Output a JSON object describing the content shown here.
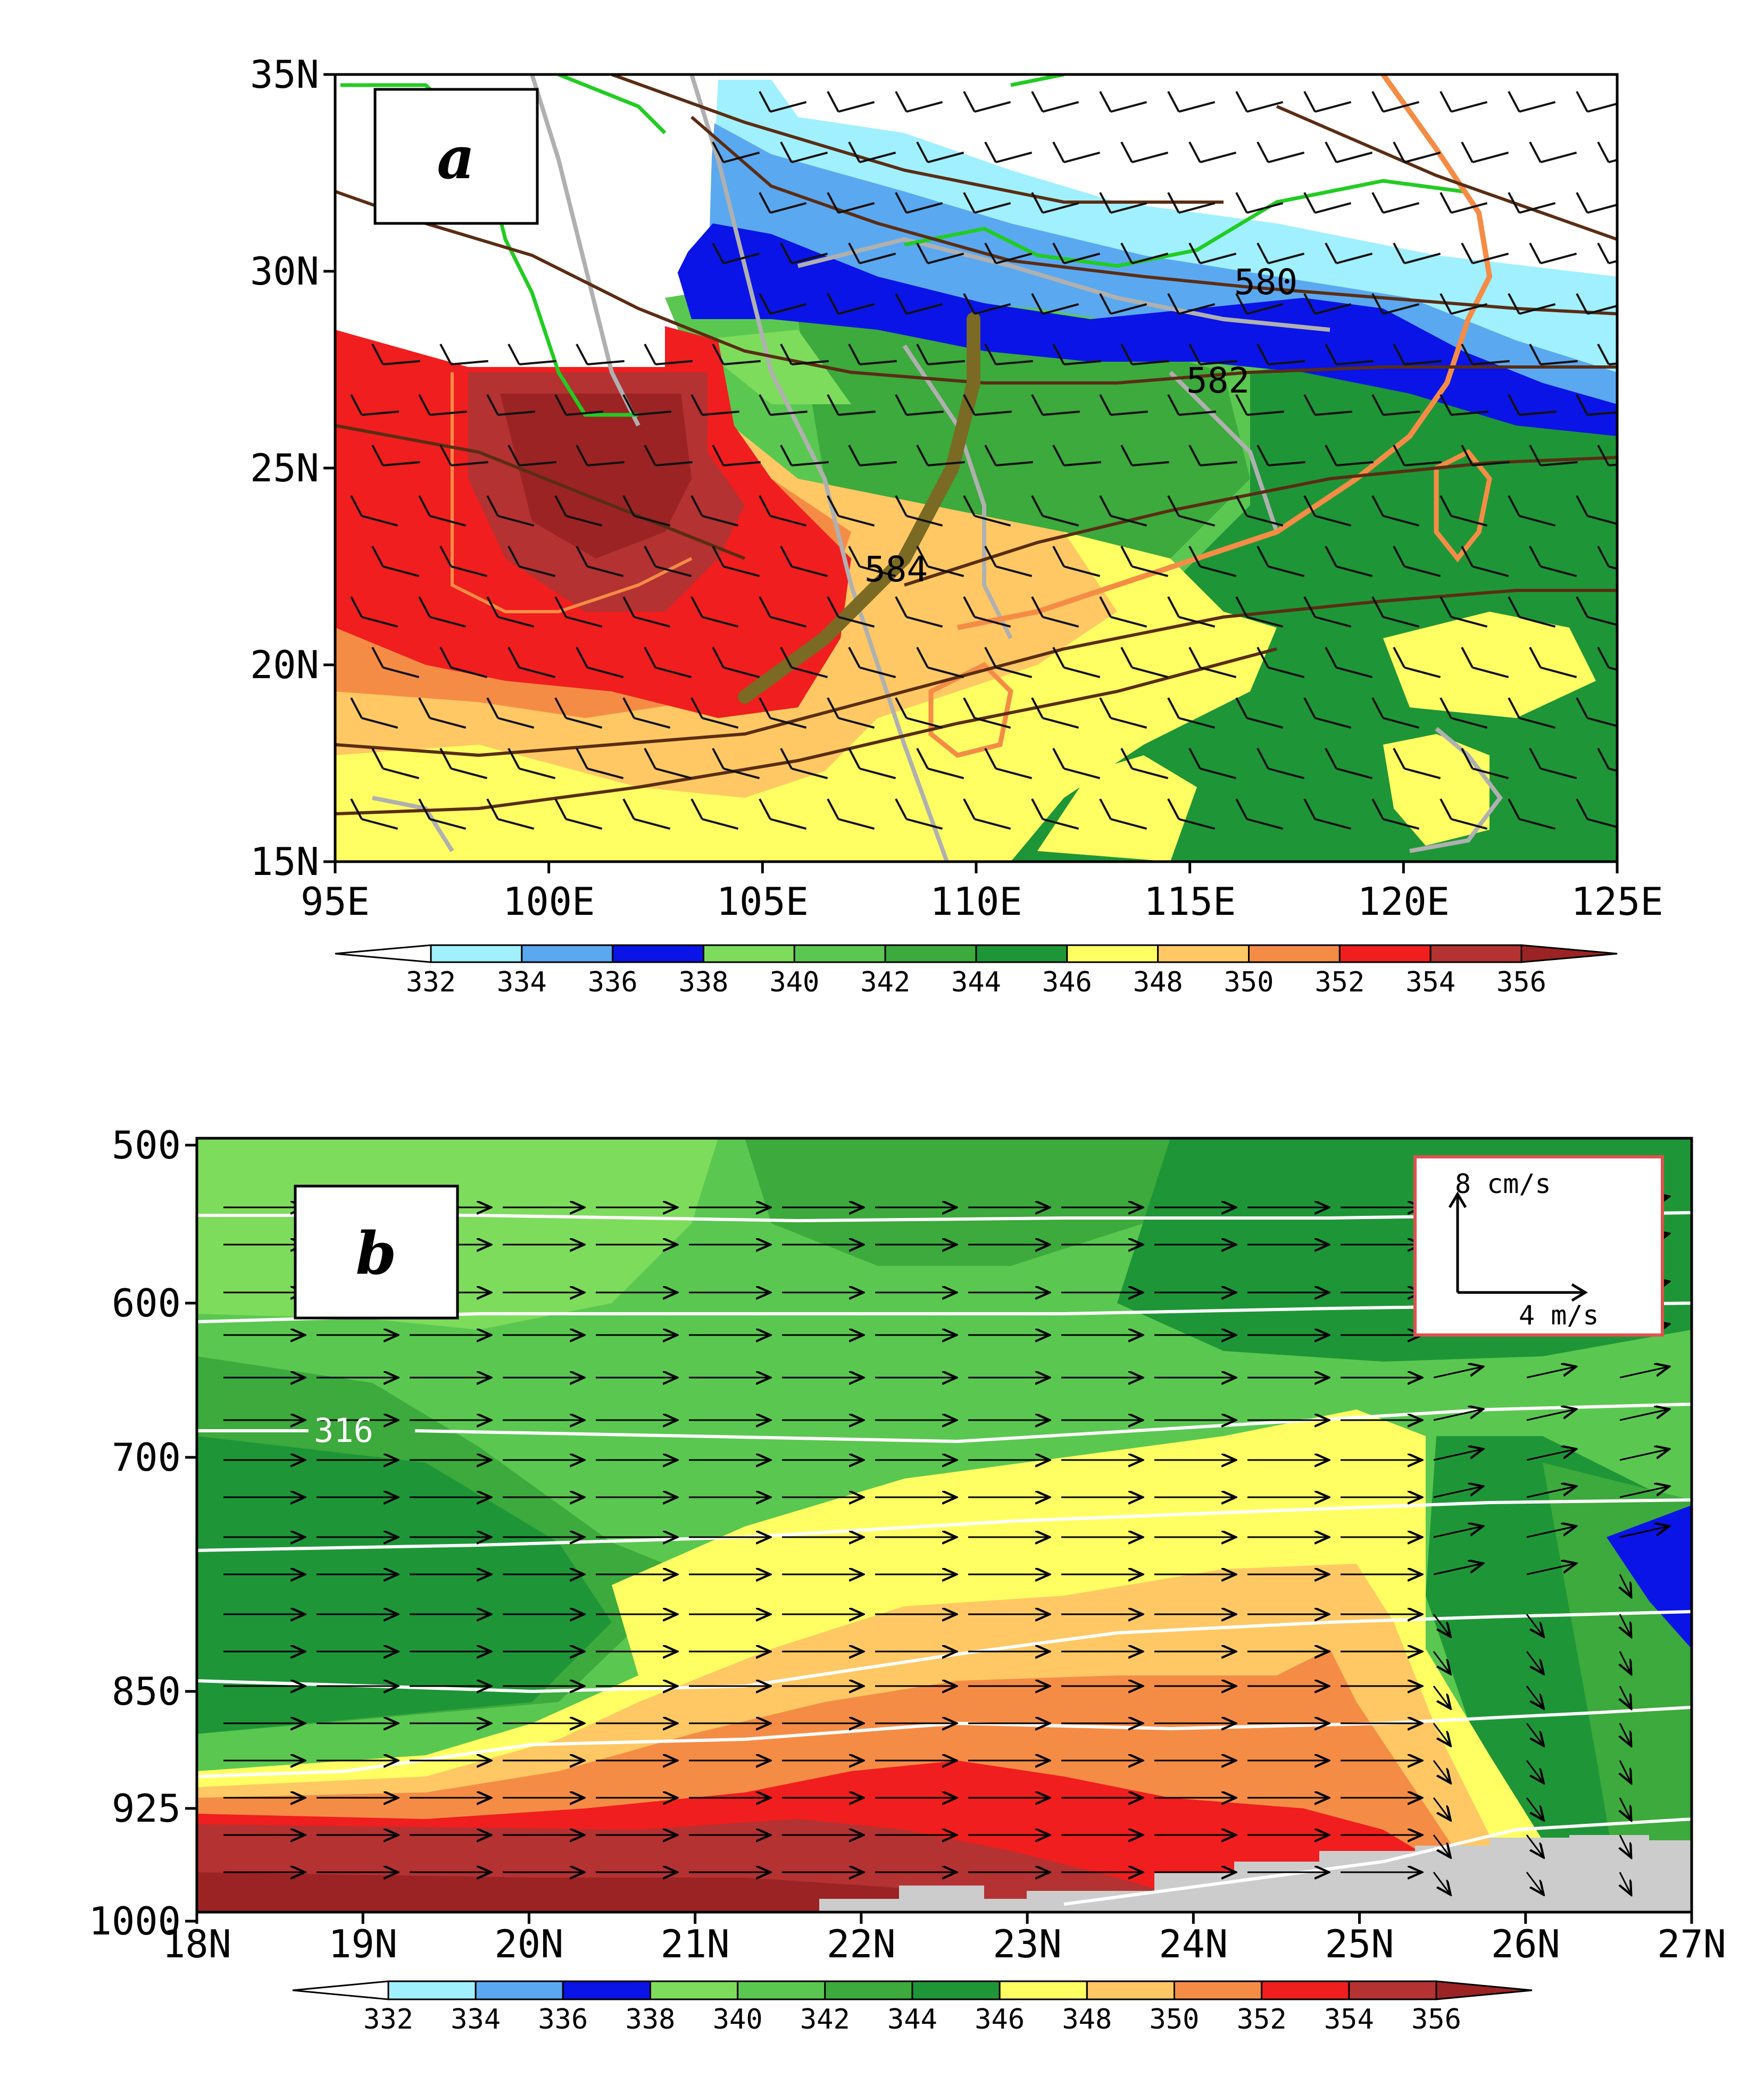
{
  "panel_a": {
    "label": "a",
    "x_ticks": [
      "95E",
      "100E",
      "105E",
      "110E",
      "115E",
      "120E",
      "125E"
    ],
    "y_ticks": [
      "35N",
      "30N",
      "25N",
      "20N",
      "15N"
    ],
    "contour_labels": [
      "580",
      "582",
      "584"
    ],
    "colorbar_ticks": [
      "332",
      "334",
      "336",
      "338",
      "340",
      "342",
      "344",
      "346",
      "348",
      "350",
      "352",
      "354",
      "356"
    ]
  },
  "panel_b": {
    "label": "b",
    "x_ticks": [
      "18N",
      "19N",
      "20N",
      "21N",
      "22N",
      "23N",
      "24N",
      "25N",
      "26N",
      "27N"
    ],
    "y_ticks": [
      "500",
      "600",
      "700",
      "850",
      "925",
      "1000"
    ],
    "contour_labels": [
      "316"
    ],
    "vector_legend": {
      "vertical": "8 cm/s",
      "horizontal": "4 m/s"
    },
    "colorbar_ticks": [
      "332",
      "334",
      "336",
      "338",
      "340",
      "342",
      "344",
      "346",
      "348",
      "350",
      "352",
      "354",
      "356"
    ]
  },
  "colors": {
    "c332": "#a0f0ff",
    "c334": "#5aa8f0",
    "c336": "#0a14e6",
    "c338": "#7edc5c",
    "c340": "#5ac850",
    "c342": "#3caa3c",
    "c344": "#1e9637",
    "c346": "#ffff64",
    "c348": "#ffc864",
    "c350": "#f58c46",
    "c352": "#f01e1e",
    "c354": "#b43232",
    "c356": "#9b2323"
  }
}
